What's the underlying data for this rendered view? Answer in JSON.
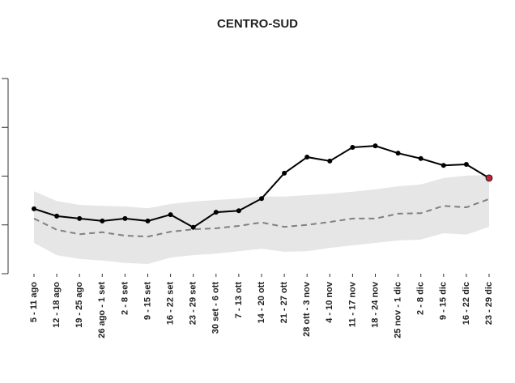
{
  "chart_data": {
    "type": "line",
    "title": "CENTRO-SUD",
    "categories": [
      "5 - 11 ago",
      "12 - 18 ago",
      "19 - 25 ago",
      "26 ago - 1 set",
      "2 - 8 set",
      "9 - 15 set",
      "16 - 22 set",
      "23 - 29 set",
      "30 set - 6 ott",
      "7 - 13 ott",
      "14 - 20 ott",
      "21 - 27 ott",
      "28 ott - 3 nov",
      "4 - 10 nov",
      "11 - 17 nov",
      "18 - 24 nov",
      "25 nov - 1 dic",
      "2 - 8 dic",
      "9 - 15 dic",
      "16 - 22 dic",
      "23 - 29 dic"
    ],
    "series": [
      {
        "color": "#000000",
        "values": [
          1.33,
          1.18,
          1.13,
          1.08,
          1.13,
          1.08,
          1.21,
          0.95,
          1.26,
          1.29,
          1.54,
          2.06,
          2.39,
          2.31,
          2.59,
          2.62,
          2.47,
          2.36,
          2.22,
          2.24,
          1.96
        ],
        "markers": true,
        "highlight_last_color": "#c0283a"
      },
      {
        "color": "#808080",
        "dashed": true,
        "values": [
          1.13,
          0.9,
          0.81,
          0.85,
          0.78,
          0.76,
          0.86,
          0.91,
          0.93,
          0.98,
          1.05,
          0.96,
          1.0,
          1.06,
          1.13,
          1.13,
          1.23,
          1.24,
          1.39,
          1.36,
          1.53
        ]
      }
    ],
    "band": {
      "color": "#e6e6e6",
      "upper": [
        1.69,
        1.49,
        1.41,
        1.39,
        1.38,
        1.34,
        1.43,
        1.48,
        1.51,
        1.54,
        1.58,
        1.58,
        1.61,
        1.64,
        1.68,
        1.73,
        1.79,
        1.83,
        1.96,
        2.01,
        2.02
      ],
      "lower": [
        0.63,
        0.38,
        0.3,
        0.27,
        0.22,
        0.2,
        0.33,
        0.38,
        0.41,
        0.46,
        0.51,
        0.45,
        0.46,
        0.53,
        0.58,
        0.63,
        0.68,
        0.7,
        0.83,
        0.8,
        0.96
      ]
    },
    "ylim": [
      0,
      4
    ],
    "yticks": [
      0,
      1,
      2,
      3,
      4
    ]
  }
}
